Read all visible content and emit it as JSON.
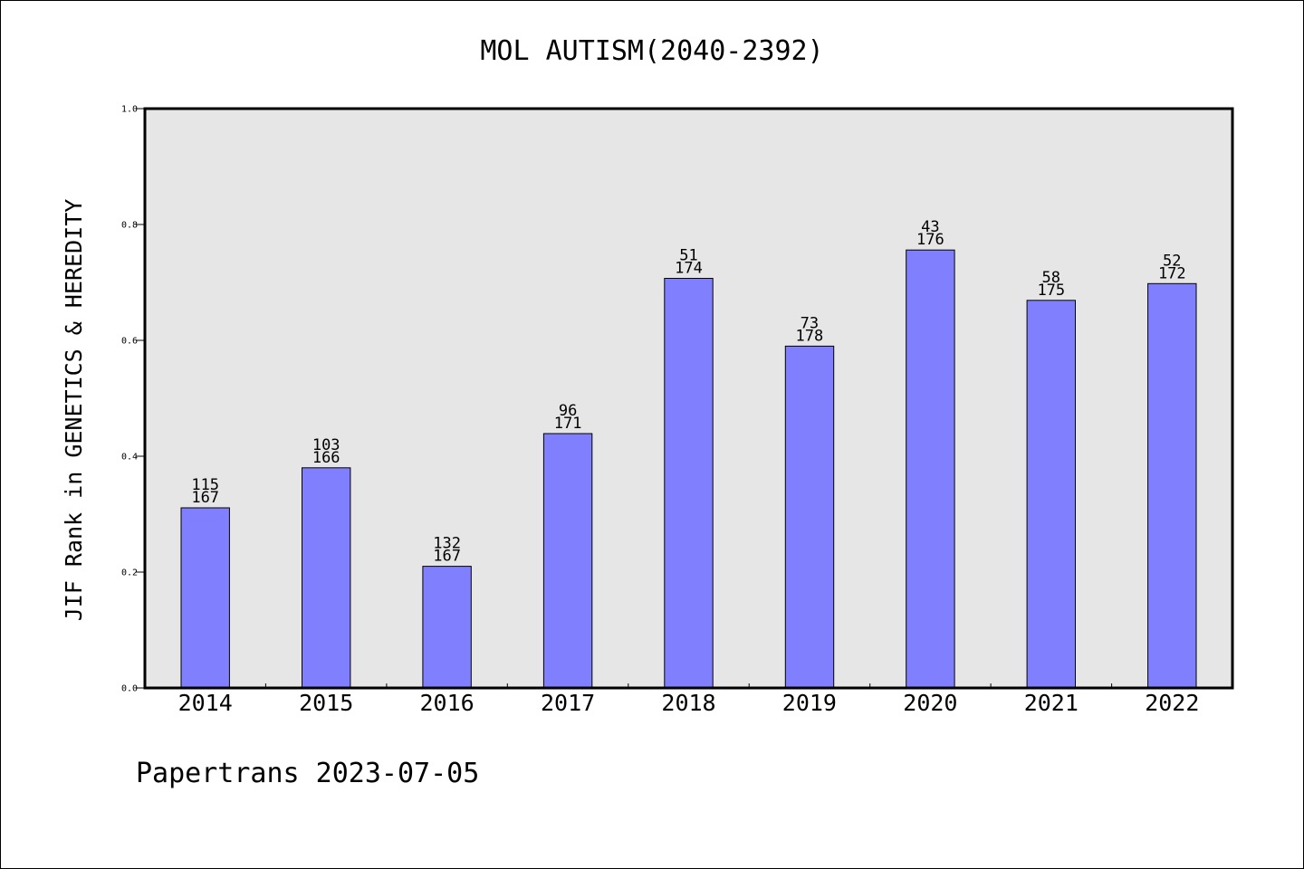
{
  "chart_data": {
    "type": "bar",
    "title": "MOL AUTISM(2040-2392)",
    "xlabel": "",
    "ylabel": "JIF Rank in GENETICS & HEREDITY",
    "ylim": [
      0.0,
      1.0
    ],
    "yticks": [
      "0.0",
      "0.2",
      "0.4",
      "0.6",
      "0.8",
      "1.0"
    ],
    "grid": false,
    "categories": [
      "2014",
      "2015",
      "2016",
      "2017",
      "2018",
      "2019",
      "2020",
      "2021",
      "2022"
    ],
    "values": [
      0.311,
      0.38,
      0.21,
      0.439,
      0.707,
      0.59,
      0.756,
      0.669,
      0.698
    ],
    "rank_labels": [
      "115",
      "103",
      "132",
      "96",
      "51",
      "73",
      "43",
      "58",
      "52"
    ],
    "total_labels": [
      "167",
      "166",
      "167",
      "171",
      "174",
      "178",
      "176",
      "175",
      "172"
    ],
    "colors": {
      "bar": "#8080ff",
      "bar_edge": "#000000",
      "plot_background": "#e6e6e6"
    }
  },
  "footer": {
    "text": "Papertrans 2023-07-05"
  }
}
